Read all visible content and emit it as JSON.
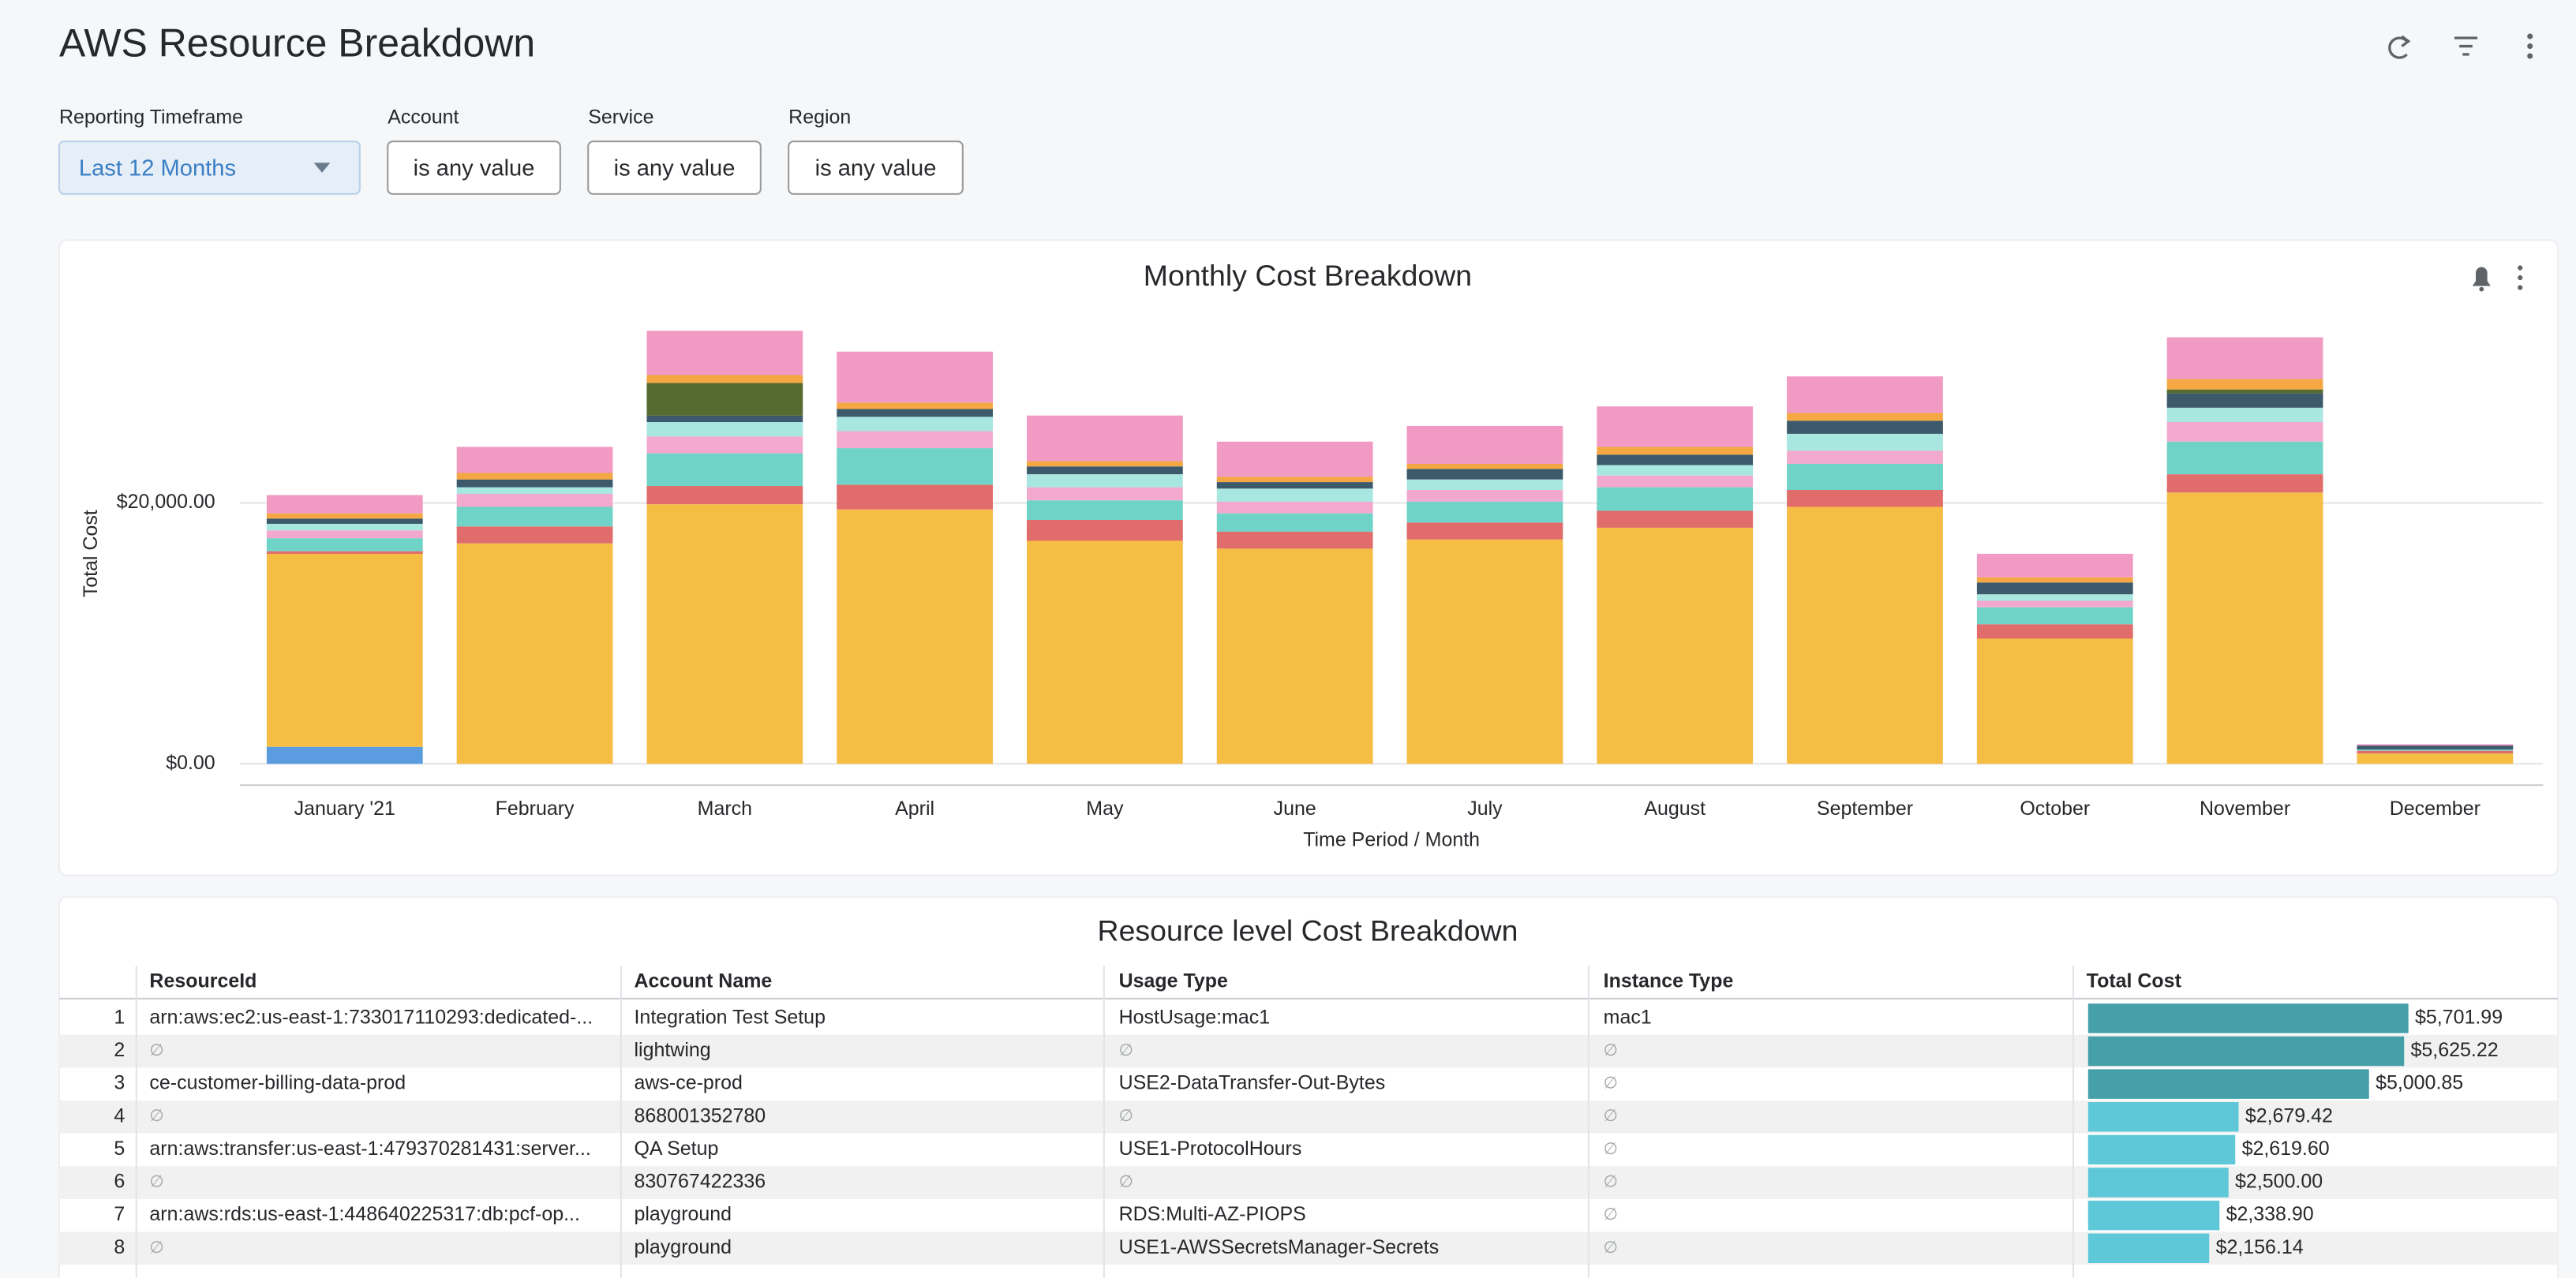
{
  "header": {
    "title": "AWS Resource Breakdown"
  },
  "filters": [
    {
      "label": "Reporting Timeframe",
      "value": "Last 12 Months"
    },
    {
      "label": "Account",
      "value": "is any value"
    },
    {
      "label": "Service",
      "value": "is any value"
    },
    {
      "label": "Region",
      "value": "is any value"
    }
  ],
  "chart_data": {
    "type": "stacked_bar",
    "title": "Monthly Cost Breakdown",
    "x_label": "Time Period / Month",
    "y_label": "Total Cost",
    "categories": [
      "January '21",
      "February",
      "March",
      "April",
      "May",
      "June",
      "July",
      "August",
      "September",
      "October",
      "November",
      "December"
    ],
    "ylim": [
      0,
      35000
    ],
    "yticks": [
      {
        "value": 0,
        "label": "$0.00"
      },
      {
        "value": 20000,
        "label": "$20,000.00"
      }
    ],
    "grid": true,
    "series": [
      {
        "color": "#5b9be0",
        "values": [
          1300,
          0,
          0,
          0,
          0,
          0,
          0,
          0,
          0,
          0,
          0,
          0
        ]
      },
      {
        "color": "#f6bd45",
        "values": [
          14800,
          16900,
          19900,
          19500,
          17100,
          16500,
          17200,
          18100,
          19700,
          9600,
          20800,
          800
        ]
      },
      {
        "color": "#e06c6c",
        "values": [
          200,
          1300,
          1400,
          1900,
          1600,
          1300,
          1300,
          1300,
          1300,
          1100,
          1400,
          200
        ]
      },
      {
        "color": "#6fd3c8",
        "values": [
          1000,
          1500,
          2500,
          2800,
          1500,
          1400,
          1600,
          1800,
          2000,
          1300,
          2500,
          100
        ]
      },
      {
        "color": "#f2a9cd",
        "values": [
          600,
          1000,
          1300,
          1300,
          1000,
          900,
          900,
          900,
          1000,
          500,
          1500,
          0
        ]
      },
      {
        "color": "#a8e6e0",
        "values": [
          500,
          500,
          1100,
          1100,
          1000,
          1000,
          800,
          800,
          1300,
          500,
          1100,
          0
        ]
      },
      {
        "color": "#3d5a6c",
        "values": [
          400,
          600,
          500,
          600,
          600,
          500,
          800,
          800,
          1000,
          900,
          1100,
          300
        ]
      },
      {
        "color": "#556b2f",
        "values": [
          0,
          0,
          2500,
          0,
          0,
          0,
          0,
          0,
          0,
          0,
          300,
          0
        ]
      },
      {
        "color": "#f4a742",
        "values": [
          400,
          500,
          600,
          500,
          400,
          400,
          400,
          600,
          600,
          400,
          800,
          0
        ]
      },
      {
        "color": "#f09ac4",
        "values": [
          1400,
          2000,
          3400,
          3900,
          3500,
          2700,
          2900,
          3100,
          2800,
          1800,
          3200,
          100
        ]
      }
    ]
  },
  "table": {
    "title": "Resource level Cost Breakdown",
    "columns": [
      "ResourceId",
      "Account Name",
      "Usage Type",
      "Instance Type",
      "Total Cost"
    ],
    "rows": [
      {
        "index": 1,
        "resource_id": "arn:aws:ec2:us-east-1:733017110293:dedicated-...",
        "account_name": "Integration Test Setup",
        "usage_type": "HostUsage:mac1",
        "instance_type": "mac1",
        "total_cost": {
          "value": 5701.99,
          "label": "$5,701.99"
        }
      },
      {
        "index": 2,
        "resource_id": "∅",
        "account_name": "lightwing",
        "usage_type": "∅",
        "instance_type": "∅",
        "total_cost": {
          "value": 5625.22,
          "label": "$5,625.22"
        }
      },
      {
        "index": 3,
        "resource_id": "ce-customer-billing-data-prod",
        "account_name": "aws-ce-prod",
        "usage_type": "USE2-DataTransfer-Out-Bytes",
        "instance_type": "∅",
        "total_cost": {
          "value": 5000.85,
          "label": "$5,000.85"
        }
      },
      {
        "index": 4,
        "resource_id": "∅",
        "account_name": "868001352780",
        "usage_type": "∅",
        "instance_type": "∅",
        "total_cost": {
          "value": 2679.42,
          "label": "$2,679.42"
        }
      },
      {
        "index": 5,
        "resource_id": "arn:aws:transfer:us-east-1:479370281431:server...",
        "account_name": "QA Setup",
        "usage_type": "USE1-ProtocolHours",
        "instance_type": "∅",
        "total_cost": {
          "value": 2619.6,
          "label": "$2,619.60"
        }
      },
      {
        "index": 6,
        "resource_id": "∅",
        "account_name": "830767422336",
        "usage_type": "∅",
        "instance_type": "∅",
        "total_cost": {
          "value": 2500.0,
          "label": "$2,500.00"
        }
      },
      {
        "index": 7,
        "resource_id": "arn:aws:rds:us-east-1:448640225317:db:pcf-op...",
        "account_name": "playground",
        "usage_type": "RDS:Multi-AZ-PIOPS",
        "instance_type": "∅",
        "total_cost": {
          "value": 2338.9,
          "label": "$2,338.90"
        }
      },
      {
        "index": 8,
        "resource_id": "∅",
        "account_name": "playground",
        "usage_type": "USE1-AWSSecretsManager-Secrets",
        "instance_type": "∅",
        "total_cost": {
          "value": 2156.14,
          "label": "$2,156.14"
        }
      }
    ]
  }
}
